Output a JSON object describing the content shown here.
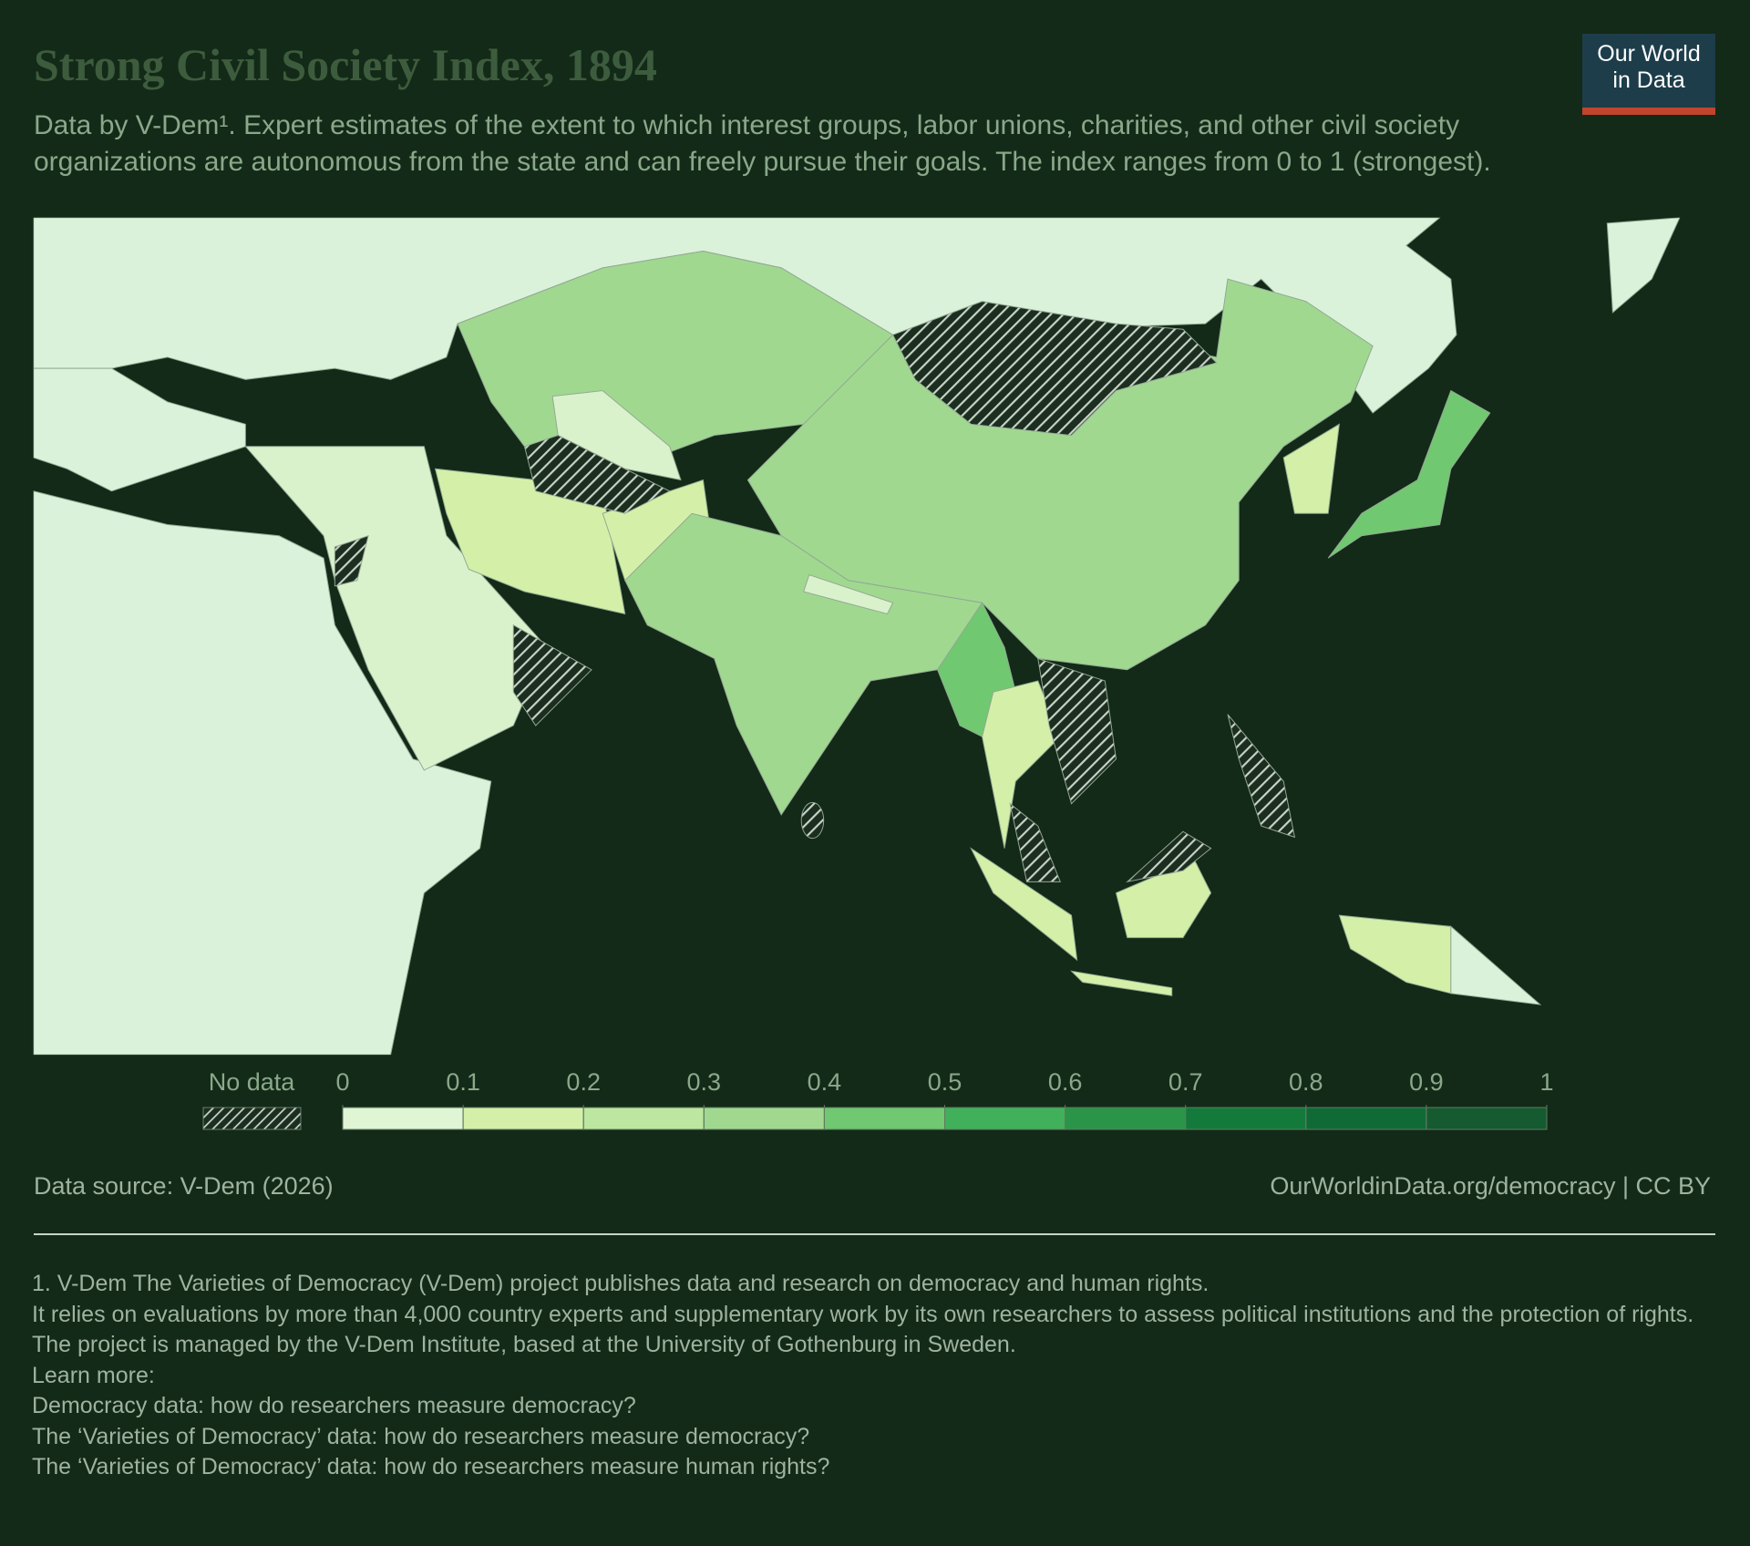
{
  "header": {
    "title": "Strong Civil Society Index, 1894",
    "subtitle": "Data by V-Dem¹. Expert estimates of the extent to which interest groups, labor unions, charities, and other civil society organizations are autonomous from the state and can freely pursue their goals. The index ranges from 0 to 1 (strongest).",
    "logo": [
      "Our World",
      "in Data"
    ]
  },
  "legend": {
    "no_data": "No data",
    "xlim": [
      0,
      1
    ],
    "ticks": [
      0,
      0.1,
      0.2,
      0.3,
      0.4,
      0.5,
      0.6,
      0.7,
      0.8,
      0.9,
      1
    ],
    "colors": [
      "#dff5d3",
      "#d4f0a8",
      "#bde6a0",
      "#a0d890",
      "#70c870",
      "#41b05a",
      "#2a9448",
      "#137a3c",
      "#106a35",
      "#155a30"
    ]
  },
  "footer": {
    "source": "Data source: V-Dem (2026)",
    "url": "OurWorldinData.org/democracy | CC BY",
    "notes": [
      "1. V-Dem The Varieties of Democracy (V-Dem) project publishes data and research on democracy and human rights.",
      "It relies on evaluations by more than 4,000 country experts and supplementary work by its own researchers to assess political institutions and the protection of rights.",
      "The project is managed by the V-Dem Institute, based at the University of Gothenburg in Sweden.",
      "Learn more:",
      "Democracy data: how do researchers measure democracy?",
      "The ‘Varieties of Democracy’ data: how do researchers measure democracy?",
      "The ‘Varieties of Democracy’ data: how do researchers measure human rights?"
    ]
  }
}
